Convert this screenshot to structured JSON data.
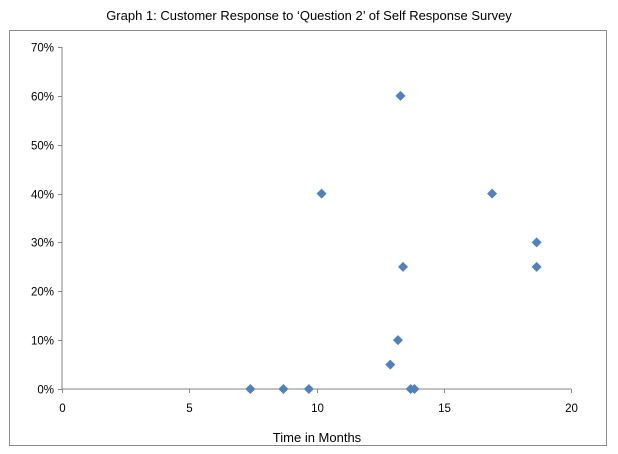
{
  "chart_data": {
    "type": "scatter",
    "title": "Graph 1: Customer Response to ‘Question 2’ of Self Response Survey",
    "xlabel": "Time in Months",
    "ylabel": "",
    "xlim": [
      0,
      20
    ],
    "ylim": [
      0,
      70
    ],
    "x_ticks": [
      0,
      5,
      10,
      15,
      20
    ],
    "y_ticks": [
      0,
      10,
      20,
      30,
      40,
      50,
      60,
      70
    ],
    "y_tick_labels": [
      "0%",
      "10%",
      "20%",
      "30%",
      "40%",
      "50%",
      "60%",
      "70%"
    ],
    "grid": false,
    "legend": "none",
    "marker": "diamond",
    "color": "#4f81bd",
    "points": [
      {
        "x": 7.4,
        "y": 0
      },
      {
        "x": 8.7,
        "y": 0
      },
      {
        "x": 9.7,
        "y": 0
      },
      {
        "x": 10.2,
        "y": 40
      },
      {
        "x": 12.9,
        "y": 5
      },
      {
        "x": 13.2,
        "y": 10
      },
      {
        "x": 13.3,
        "y": 60
      },
      {
        "x": 13.4,
        "y": 25
      },
      {
        "x": 13.7,
        "y": 0
      },
      {
        "x": 13.85,
        "y": 0
      },
      {
        "x": 16.9,
        "y": 40
      },
      {
        "x": 18.65,
        "y": 30
      },
      {
        "x": 18.65,
        "y": 25
      }
    ]
  }
}
